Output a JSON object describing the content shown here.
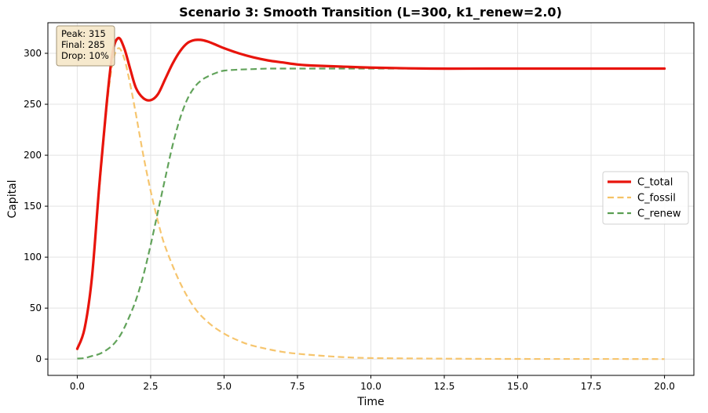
{
  "chart_data": {
    "type": "line",
    "title": "Scenario 3: Smooth Transition (L=300, k1_renew=2.0)",
    "xlabel": "Time",
    "ylabel": "Capital",
    "xlim": [
      -1,
      21
    ],
    "ylim": [
      -16,
      330
    ],
    "xticks": [
      0.0,
      2.5,
      5.0,
      7.5,
      10.0,
      12.5,
      15.0,
      17.5,
      20.0
    ],
    "xtick_labels": [
      "0.0",
      "2.5",
      "5.0",
      "7.5",
      "10.0",
      "12.5",
      "15.0",
      "17.5",
      "20.0"
    ],
    "yticks": [
      0,
      50,
      100,
      150,
      200,
      250,
      300
    ],
    "ytick_labels": [
      "0",
      "50",
      "100",
      "150",
      "200",
      "250",
      "300"
    ],
    "grid": true,
    "legend_position": "center-right",
    "annotation": {
      "lines": [
        "Peak: 315",
        "Final: 285",
        "Drop: 10%"
      ],
      "position": "top-left"
    },
    "series": [
      {
        "name": "C_total",
        "color": "#e8140c",
        "style": "solid",
        "x": [
          0,
          0.25,
          0.5,
          0.75,
          1.0,
          1.2,
          1.4,
          1.6,
          1.8,
          2.0,
          2.25,
          2.5,
          2.75,
          3.0,
          3.25,
          3.5,
          3.75,
          4.0,
          4.25,
          4.5,
          4.75,
          5.0,
          5.5,
          6.0,
          6.5,
          7.0,
          7.5,
          8.0,
          9.0,
          10.0,
          12.0,
          14.0,
          16.0,
          18.0,
          20.0
        ],
        "values": [
          10,
          30,
          80,
          170,
          250,
          300,
          315,
          305,
          285,
          266,
          256,
          254,
          260,
          275,
          290,
          302,
          310,
          313,
          313,
          311,
          308,
          305,
          300,
          296,
          293,
          291,
          289,
          288,
          287,
          286,
          285,
          285,
          285,
          285,
          285
        ]
      },
      {
        "name": "C_fossil",
        "color": "#f5c266",
        "style": "dashed",
        "x": [
          0,
          0.25,
          0.5,
          0.75,
          1.0,
          1.2,
          1.4,
          1.6,
          1.8,
          2.0,
          2.25,
          2.5,
          2.75,
          3.0,
          3.5,
          4.0,
          4.5,
          5.0,
          5.5,
          6.0,
          7.0,
          8.0,
          9.0,
          10.0,
          12.0,
          14.0,
          16.0,
          18.0,
          20.0
        ],
        "values": [
          10,
          30,
          80,
          165,
          245,
          290,
          305,
          295,
          270,
          240,
          200,
          165,
          135,
          110,
          75,
          50,
          35,
          25,
          18,
          13,
          7,
          4,
          2,
          1,
          0.5,
          0.2,
          0.1,
          0.1,
          0
        ]
      },
      {
        "name": "C_renew",
        "color": "#5a9e52",
        "style": "dashed",
        "x": [
          0,
          0.25,
          0.5,
          0.75,
          1.0,
          1.25,
          1.5,
          1.75,
          2.0,
          2.25,
          2.5,
          2.75,
          3.0,
          3.25,
          3.5,
          3.75,
          4.0,
          4.25,
          4.5,
          4.75,
          5.0,
          5.5,
          6.0,
          6.5,
          7.0,
          8.0,
          10.0,
          12.0,
          14.0,
          16.0,
          18.0,
          20.0
        ],
        "values": [
          0.5,
          1,
          3,
          5,
          9,
          15,
          25,
          40,
          58,
          82,
          112,
          145,
          178,
          210,
          236,
          255,
          267,
          274,
          278,
          281,
          283,
          284,
          284.5,
          285,
          285,
          285,
          285,
          285,
          285,
          285,
          285,
          285
        ]
      }
    ]
  }
}
